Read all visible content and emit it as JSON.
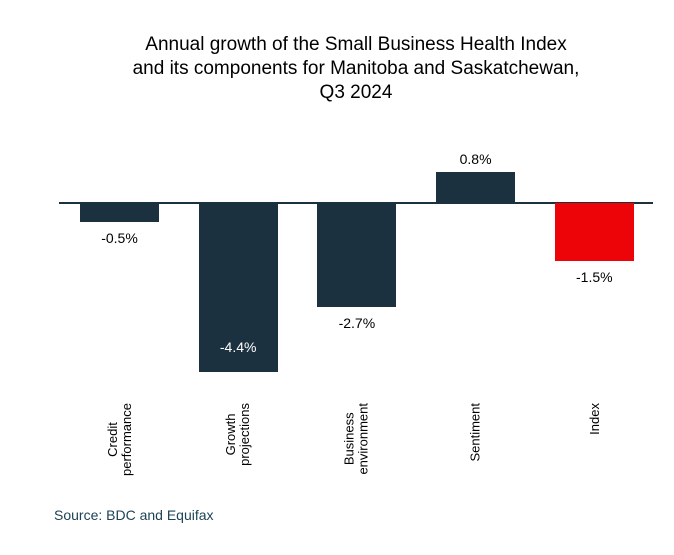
{
  "title": "Annual growth of the Small Business Health Index\nand its components for Manitoba and Saskatchewan,\nQ3 2024",
  "source": "Source: BDC and Equifax",
  "colors": {
    "bar_default": "#1C3140",
    "bar_highlight": "#EC0408",
    "axis_line": "#1C3140",
    "source_text": "#1D4356",
    "value_label": "#000000",
    "inside_label": "#FFFFFF",
    "background": "#FFFFFF"
  },
  "chart_data": {
    "type": "bar",
    "title": "Annual growth of the Small Business Health Index and its components for Manitoba and Saskatchewan, Q3 2024",
    "categories": [
      "Credit\nperformance",
      "Growth\nprojections",
      "Business\nenvironment",
      "Sentiment",
      "Index"
    ],
    "values": [
      -0.5,
      -4.4,
      -2.7,
      0.8,
      -1.5
    ],
    "value_labels": [
      "-0.5%",
      "-4.4%",
      "-2.7%",
      "0.8%",
      "-1.5%"
    ],
    "label_placements": [
      "below",
      "inside",
      "below",
      "above",
      "below"
    ],
    "bar_colors": [
      "#1C3140",
      "#1C3140",
      "#1C3140",
      "#1C3140",
      "#EC0408"
    ],
    "unit": "%",
    "baseline": 0,
    "xlabel": "",
    "ylabel": "",
    "grid": false,
    "legend": false,
    "source": "Source: BDC and Equifax"
  }
}
